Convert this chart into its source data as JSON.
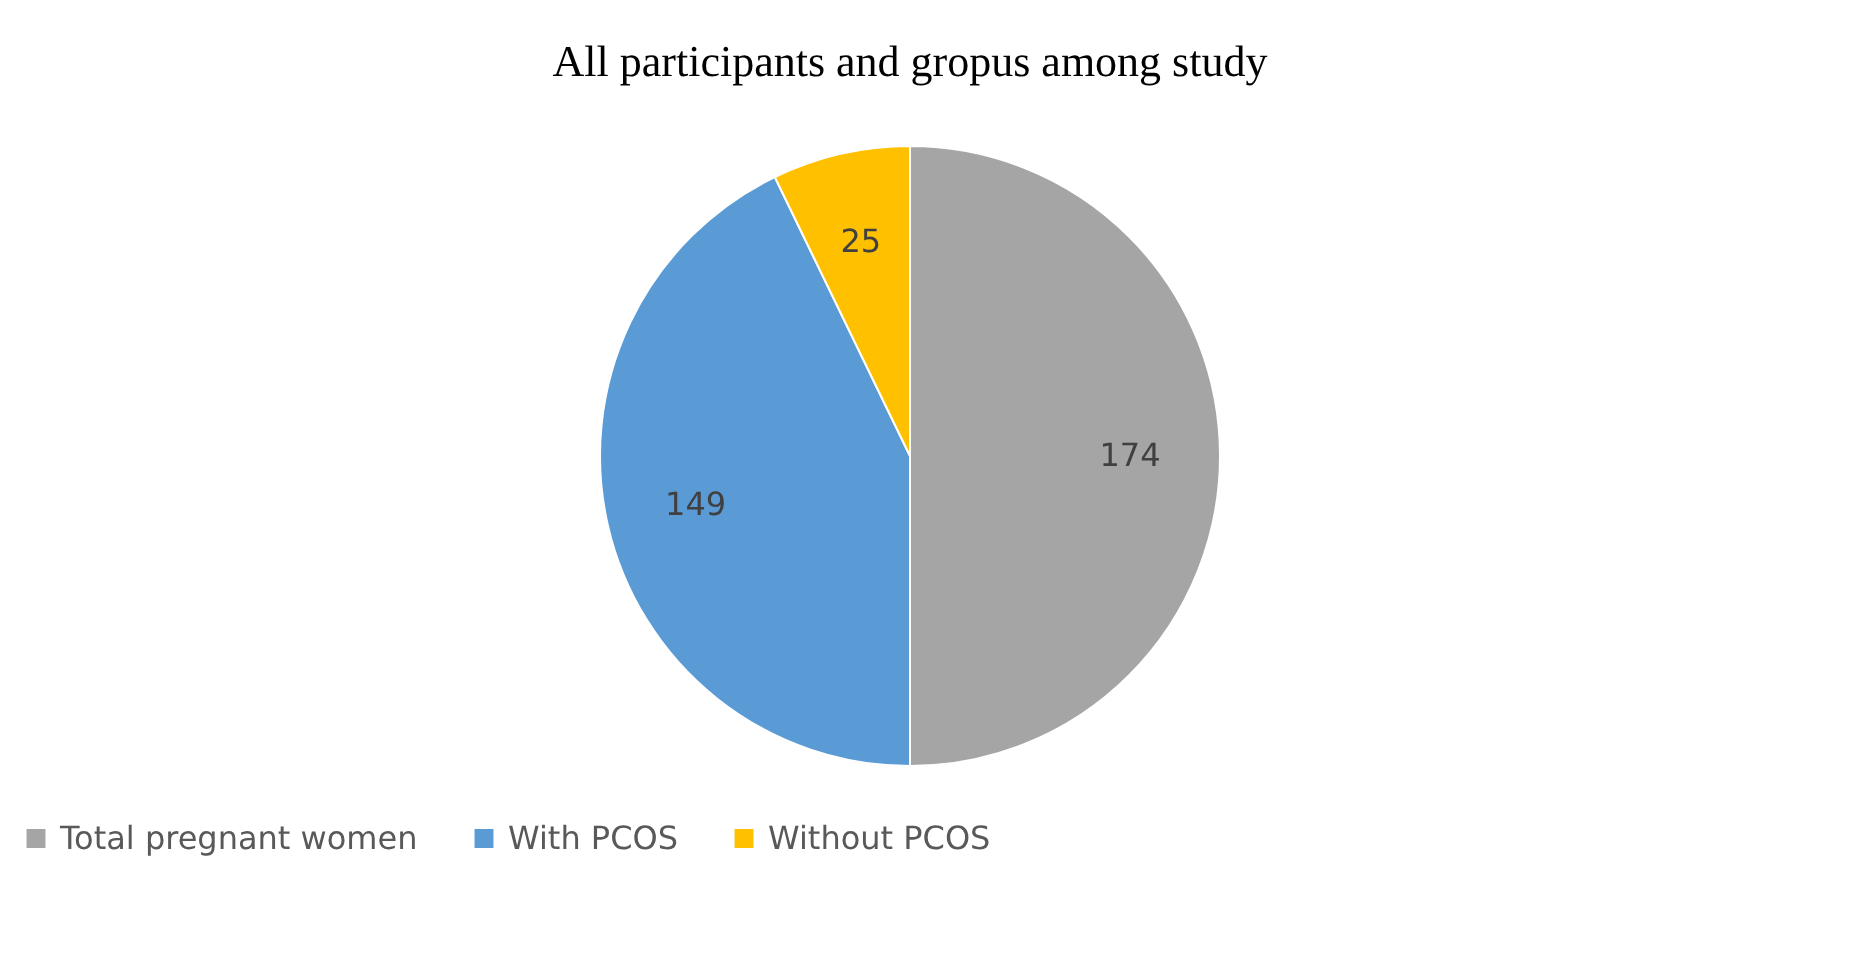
{
  "chart_data": {
    "type": "pie",
    "title": "All participants and gropus among study",
    "categories": [
      "Total pregnant women",
      "With PCOS",
      "Without PCOS"
    ],
    "values": [
      174,
      149,
      25
    ],
    "colors": [
      "#a5a5a5",
      "#5b9bd5",
      "#ffc000"
    ],
    "data_labels": true,
    "legend": "bottom"
  }
}
